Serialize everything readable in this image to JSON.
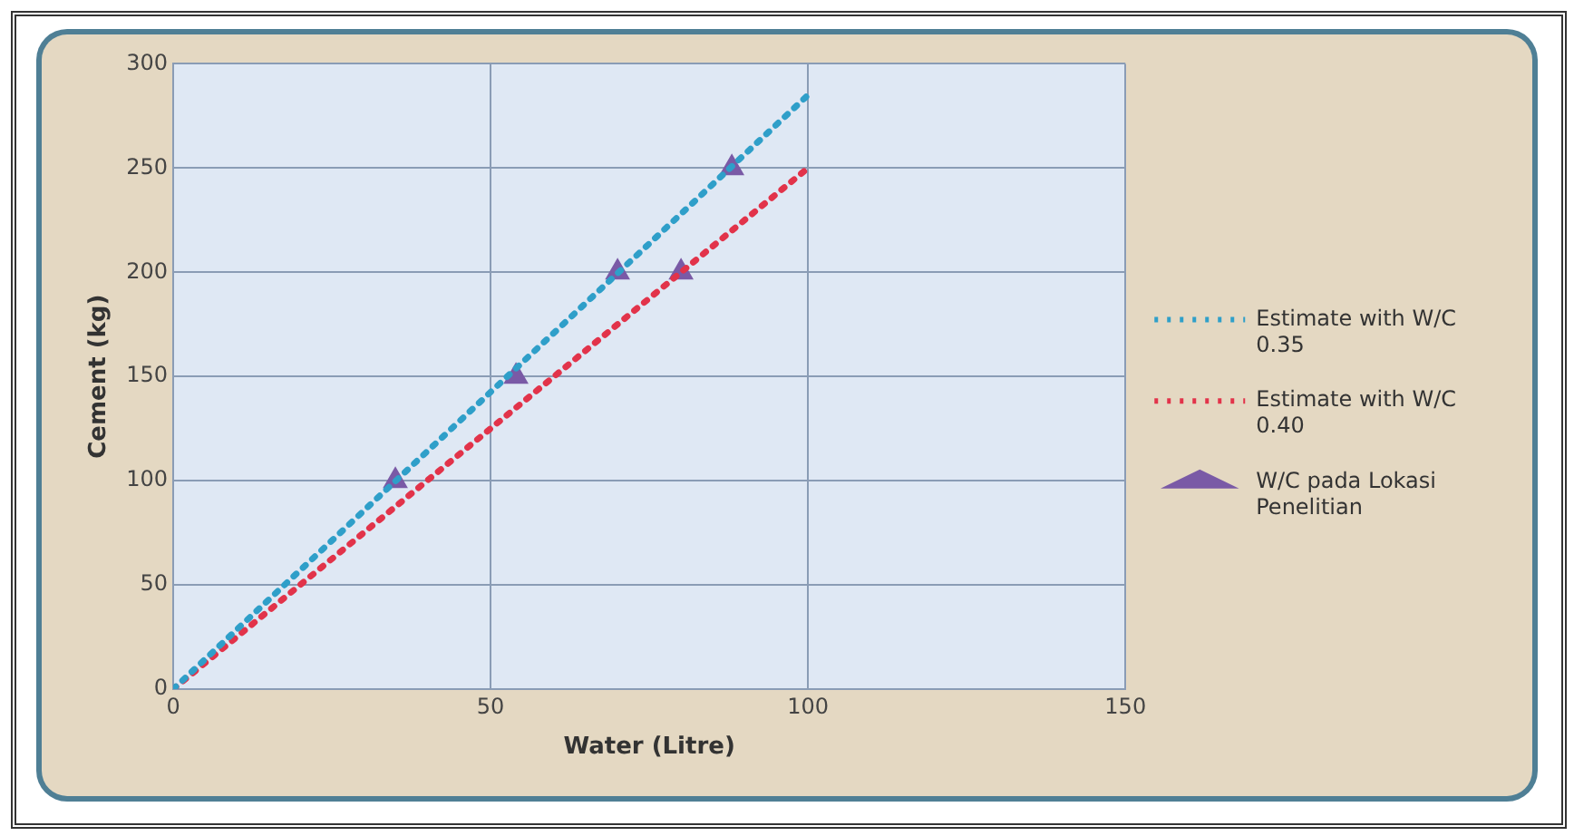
{
  "chart_data": {
    "type": "line",
    "xlabel": "Water (Litre)",
    "ylabel": "Cement (kg)",
    "xlim": [
      0,
      150
    ],
    "xticks": [
      0,
      50,
      100,
      150
    ],
    "ylim": [
      0,
      300
    ],
    "yticks": [
      0,
      50,
      100,
      150,
      200,
      250,
      300
    ],
    "grid": true,
    "legend": "right",
    "series": [
      {
        "name": "Estimate with W/C 0.35",
        "color": "#2f9fc9",
        "x": [
          0,
          100
        ],
        "values": [
          0,
          285
        ],
        "marker": "none",
        "line_style": "dotted"
      },
      {
        "name": "Estimate with W/C 0.40",
        "color": "#e2334a",
        "x": [
          0,
          100
        ],
        "values": [
          0,
          250
        ],
        "marker": "none",
        "line_style": "dotted"
      },
      {
        "name": "W/C pada Lokasi Penelitian",
        "type": "scatter",
        "color": "#7a5aa6",
        "x": [
          35,
          54,
          70,
          80,
          88
        ],
        "values": [
          100,
          150,
          200,
          200,
          250
        ],
        "marker": "triangle"
      }
    ]
  }
}
